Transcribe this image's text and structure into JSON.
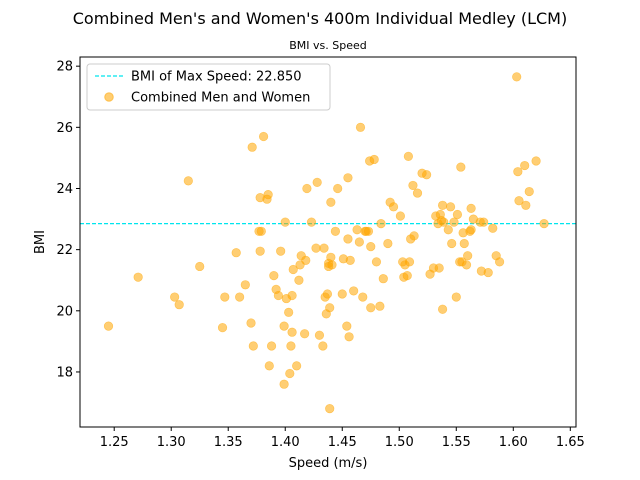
{
  "chart_data": {
    "type": "scatter",
    "suptitle": "Combined Men's and Women's 400m Individual Medley (LCM)",
    "title": "BMI vs. Speed",
    "xlabel": "Speed (m/s)",
    "ylabel": "BMI",
    "xlim": [
      1.22,
      1.655
    ],
    "ylim": [
      16.2,
      28.3
    ],
    "xticks": [
      "1.25",
      "1.30",
      "1.35",
      "1.40",
      "1.45",
      "1.50",
      "1.55",
      "1.60",
      "1.65"
    ],
    "yticks": [
      "18",
      "20",
      "22",
      "24",
      "26",
      "28"
    ],
    "grid": false,
    "legend_position": "top-left",
    "reference_line": {
      "label": "BMI of Max Speed: 22.850",
      "y": 22.85,
      "color": "#00e5ee",
      "style": "dashed"
    },
    "series": [
      {
        "name": "Combined Men and Women",
        "color": "#ffa500",
        "points": [
          [
            1.245,
            19.5
          ],
          [
            1.271,
            21.1
          ],
          [
            1.303,
            20.45
          ],
          [
            1.307,
            20.2
          ],
          [
            1.315,
            24.25
          ],
          [
            1.325,
            21.45
          ],
          [
            1.345,
            19.45
          ],
          [
            1.347,
            20.45
          ],
          [
            1.357,
            21.9
          ],
          [
            1.36,
            20.45
          ],
          [
            1.365,
            20.85
          ],
          [
            1.37,
            19.6
          ],
          [
            1.372,
            18.85
          ],
          [
            1.371,
            25.35
          ],
          [
            1.377,
            22.6
          ],
          [
            1.378,
            23.7
          ],
          [
            1.378,
            21.95
          ],
          [
            1.379,
            22.6
          ],
          [
            1.381,
            25.7
          ],
          [
            1.384,
            23.65
          ],
          [
            1.385,
            23.8
          ],
          [
            1.386,
            18.2
          ],
          [
            1.388,
            18.85
          ],
          [
            1.39,
            21.15
          ],
          [
            1.392,
            20.7
          ],
          [
            1.394,
            20.5
          ],
          [
            1.396,
            21.95
          ],
          [
            1.399,
            17.6
          ],
          [
            1.399,
            19.5
          ],
          [
            1.4,
            22.9
          ],
          [
            1.401,
            20.4
          ],
          [
            1.403,
            19.95
          ],
          [
            1.404,
            17.95
          ],
          [
            1.405,
            18.85
          ],
          [
            1.406,
            19.3
          ],
          [
            1.406,
            20.5
          ],
          [
            1.407,
            21.35
          ],
          [
            1.41,
            18.2
          ],
          [
            1.412,
            21.0
          ],
          [
            1.413,
            21.5
          ],
          [
            1.414,
            21.8
          ],
          [
            1.417,
            19.25
          ],
          [
            1.418,
            21.65
          ],
          [
            1.419,
            24.0
          ],
          [
            1.423,
            22.9
          ],
          [
            1.427,
            22.05
          ],
          [
            1.428,
            24.2
          ],
          [
            1.43,
            19.2
          ],
          [
            1.433,
            18.85
          ],
          [
            1.434,
            22.05
          ],
          [
            1.435,
            20.45
          ],
          [
            1.436,
            19.9
          ],
          [
            1.437,
            20.55
          ],
          [
            1.438,
            21.45
          ],
          [
            1.438,
            21.55
          ],
          [
            1.439,
            16.8
          ],
          [
            1.439,
            20.1
          ],
          [
            1.44,
            21.75
          ],
          [
            1.44,
            23.55
          ],
          [
            1.441,
            21.5
          ],
          [
            1.444,
            22.6
          ],
          [
            1.446,
            24.0
          ],
          [
            1.45,
            20.55
          ],
          [
            1.451,
            21.7
          ],
          [
            1.454,
            19.5
          ],
          [
            1.455,
            22.35
          ],
          [
            1.455,
            24.35
          ],
          [
            1.456,
            19.15
          ],
          [
            1.457,
            21.65
          ],
          [
            1.46,
            20.65
          ],
          [
            1.463,
            22.65
          ],
          [
            1.465,
            22.25
          ],
          [
            1.466,
            26.0
          ],
          [
            1.468,
            20.45
          ],
          [
            1.47,
            22.6
          ],
          [
            1.471,
            22.6
          ],
          [
            1.473,
            22.6
          ],
          [
            1.474,
            24.9
          ],
          [
            1.475,
            20.1
          ],
          [
            1.475,
            22.1
          ],
          [
            1.478,
            24.95
          ],
          [
            1.48,
            21.6
          ],
          [
            1.483,
            20.15
          ],
          [
            1.484,
            22.85
          ],
          [
            1.486,
            21.05
          ],
          [
            1.49,
            22.2
          ],
          [
            1.492,
            23.55
          ],
          [
            1.495,
            23.4
          ],
          [
            1.501,
            23.1
          ],
          [
            1.503,
            21.6
          ],
          [
            1.504,
            21.1
          ],
          [
            1.505,
            21.5
          ],
          [
            1.507,
            21.15
          ],
          [
            1.508,
            25.05
          ],
          [
            1.509,
            21.6
          ],
          [
            1.51,
            22.35
          ],
          [
            1.512,
            24.1
          ],
          [
            1.513,
            22.45
          ],
          [
            1.516,
            23.85
          ],
          [
            1.52,
            24.5
          ],
          [
            1.524,
            24.45
          ],
          [
            1.527,
            21.2
          ],
          [
            1.53,
            21.4
          ],
          [
            1.532,
            23.1
          ],
          [
            1.534,
            22.85
          ],
          [
            1.535,
            21.4
          ],
          [
            1.536,
            23.15
          ],
          [
            1.537,
            22.95
          ],
          [
            1.538,
            23.45
          ],
          [
            1.538,
            20.05
          ],
          [
            1.539,
            22.9
          ],
          [
            1.543,
            22.65
          ],
          [
            1.545,
            23.4
          ],
          [
            1.546,
            22.2
          ],
          [
            1.548,
            22.9
          ],
          [
            1.55,
            20.45
          ],
          [
            1.551,
            23.15
          ],
          [
            1.553,
            21.6
          ],
          [
            1.554,
            24.7
          ],
          [
            1.555,
            21.6
          ],
          [
            1.556,
            22.55
          ],
          [
            1.557,
            22.2
          ],
          [
            1.559,
            21.5
          ],
          [
            1.56,
            21.8
          ],
          [
            1.562,
            22.6
          ],
          [
            1.563,
            22.65
          ],
          [
            1.563,
            23.35
          ],
          [
            1.565,
            23.0
          ],
          [
            1.571,
            22.9
          ],
          [
            1.572,
            21.3
          ],
          [
            1.574,
            22.9
          ],
          [
            1.578,
            21.25
          ],
          [
            1.582,
            22.7
          ],
          [
            1.585,
            21.8
          ],
          [
            1.588,
            21.6
          ],
          [
            1.603,
            27.65
          ],
          [
            1.604,
            24.55
          ],
          [
            1.605,
            23.6
          ],
          [
            1.61,
            24.75
          ],
          [
            1.611,
            23.45
          ],
          [
            1.614,
            23.9
          ],
          [
            1.62,
            24.9
          ],
          [
            1.627,
            22.85
          ]
        ]
      }
    ]
  }
}
